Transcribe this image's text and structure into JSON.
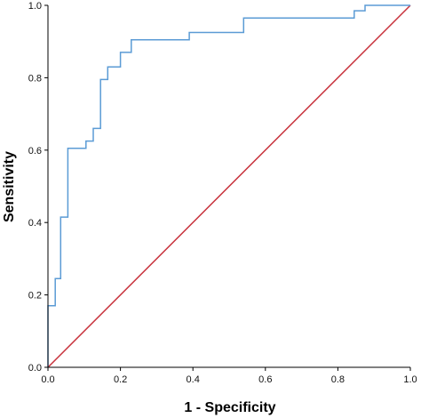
{
  "chart_data": {
    "type": "line",
    "title": "",
    "xlabel": "1 - Specificity",
    "ylabel": "Sensitivity",
    "xlim": [
      0.0,
      1.0
    ],
    "ylim": [
      0.0,
      1.0
    ],
    "x_ticks": [
      "0.0",
      "0.2",
      "0.4",
      "0.6",
      "0.8",
      "1.0"
    ],
    "y_ticks": [
      "0.0",
      "0.2",
      "0.4",
      "0.6",
      "0.8",
      "1.0"
    ],
    "grid": false,
    "legend": "none",
    "series": [
      {
        "color": "#5b9bd5",
        "step": true,
        "x": [
          0.0,
          0.0,
          0.02,
          0.02,
          0.035,
          0.035,
          0.055,
          0.055,
          0.105,
          0.105,
          0.125,
          0.125,
          0.145,
          0.145,
          0.165,
          0.165,
          0.2,
          0.2,
          0.23,
          0.23,
          0.39,
          0.39,
          0.54,
          0.54,
          0.845,
          0.845,
          0.875,
          0.875,
          1.0
        ],
        "y": [
          0.0,
          0.17,
          0.17,
          0.245,
          0.245,
          0.415,
          0.415,
          0.605,
          0.605,
          0.625,
          0.625,
          0.66,
          0.66,
          0.795,
          0.795,
          0.83,
          0.83,
          0.87,
          0.87,
          0.905,
          0.905,
          0.925,
          0.925,
          0.965,
          0.965,
          0.985,
          0.985,
          1.0,
          1.0
        ]
      },
      {
        "color": "#c8323c",
        "step": false,
        "x": [
          0.0,
          1.0
        ],
        "y": [
          0.0,
          1.0
        ]
      }
    ]
  }
}
